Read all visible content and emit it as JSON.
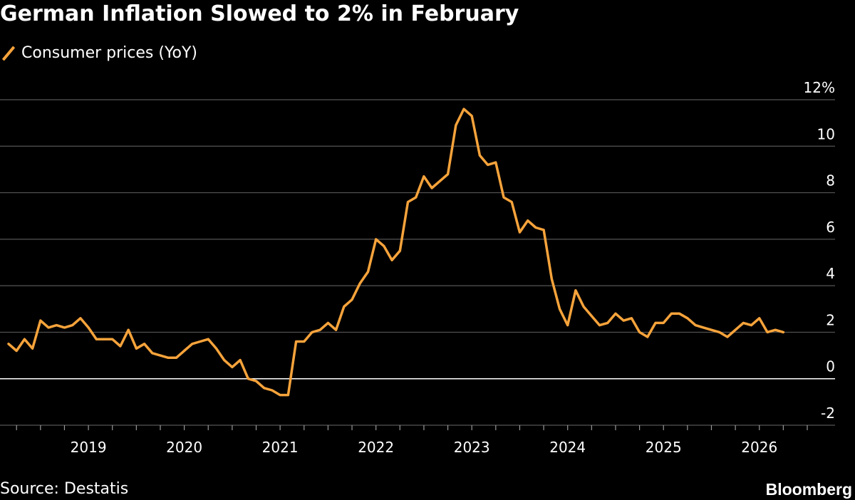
{
  "title": "German Inflation Slowed to 2% in February",
  "legend_label": "Consumer prices (YoY)",
  "source": "Source: Destatis",
  "brand": "Bloomberg",
  "colors": {
    "background": "#000000",
    "line": "#f6a33b",
    "grid": "#555555",
    "zero": "#ffffff"
  },
  "chart_data": {
    "type": "line",
    "title": "German Inflation Slowed to 2% in February",
    "xlabel": "",
    "ylabel": "",
    "ylim": [
      -2,
      12
    ],
    "y_ticks": [
      12,
      10,
      8,
      6,
      4,
      2,
      0,
      -2
    ],
    "y_tick_labels": [
      "12%",
      "10",
      "8",
      "6",
      "4",
      "2",
      "0",
      "-2"
    ],
    "x_tick_labels": [
      "2019",
      "2020",
      "2021",
      "2022",
      "2023",
      "2024",
      "2025",
      "2026"
    ],
    "x_start": "2018-03",
    "series": [
      {
        "name": "Consumer prices (YoY)",
        "values": [
          1.5,
          1.2,
          1.7,
          1.3,
          2.5,
          2.2,
          2.3,
          2.2,
          2.3,
          2.6,
          2.2,
          1.7,
          1.7,
          1.7,
          1.4,
          2.1,
          1.3,
          1.5,
          1.1,
          1.0,
          0.9,
          0.9,
          1.2,
          1.5,
          1.6,
          1.7,
          1.3,
          0.8,
          0.5,
          0.8,
          0.0,
          -0.1,
          -0.4,
          -0.5,
          -0.7,
          -0.7,
          1.6,
          1.6,
          2.0,
          2.1,
          2.4,
          2.1,
          3.1,
          3.4,
          4.1,
          4.6,
          6.0,
          5.7,
          5.1,
          5.5,
          7.6,
          7.8,
          8.7,
          8.2,
          8.5,
          8.8,
          10.9,
          11.6,
          11.3,
          9.6,
          9.2,
          9.3,
          7.8,
          7.6,
          6.3,
          6.8,
          6.5,
          6.4,
          4.3,
          3.0,
          2.3,
          3.8,
          3.1,
          2.7,
          2.3,
          2.4,
          2.8,
          2.5,
          2.6,
          2.0,
          1.8,
          2.4,
          2.4,
          2.8,
          2.8,
          2.6,
          2.3,
          2.2,
          2.1,
          2.0,
          1.8,
          2.1,
          2.4,
          2.3,
          2.6,
          2.0,
          2.1,
          2.0
        ]
      }
    ]
  }
}
